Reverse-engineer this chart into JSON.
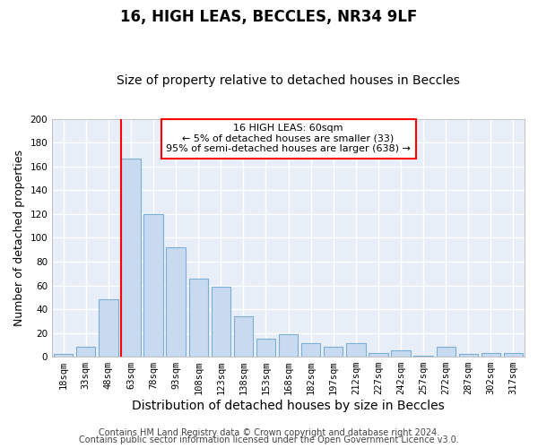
{
  "title1": "16, HIGH LEAS, BECCLES, NR34 9LF",
  "title2": "Size of property relative to detached houses in Beccles",
  "xlabel": "Distribution of detached houses by size in Beccles",
  "ylabel": "Number of detached properties",
  "bar_color": "#c8daf0",
  "bar_edge_color": "#7aaed4",
  "background_color": "#ffffff",
  "plot_bg_color": "#e8eef8",
  "grid_color": "#ffffff",
  "categories": [
    "18sqm",
    "33sqm",
    "48sqm",
    "63sqm",
    "78sqm",
    "93sqm",
    "108sqm",
    "123sqm",
    "138sqm",
    "153sqm",
    "168sqm",
    "182sqm",
    "197sqm",
    "212sqm",
    "227sqm",
    "242sqm",
    "257sqm",
    "272sqm",
    "287sqm",
    "302sqm",
    "317sqm"
  ],
  "values": [
    2,
    8,
    48,
    167,
    120,
    92,
    66,
    59,
    34,
    15,
    19,
    11,
    8,
    11,
    3,
    5,
    1,
    8,
    2,
    3,
    3
  ],
  "ylim": [
    0,
    200
  ],
  "yticks": [
    0,
    20,
    40,
    60,
    80,
    100,
    120,
    140,
    160,
    180,
    200
  ],
  "red_line_index": 3,
  "annotation_box_text": "16 HIGH LEAS: 60sqm\n← 5% of detached houses are smaller (33)\n95% of semi-detached houses are larger (638) →",
  "footer_line1": "Contains HM Land Registry data © Crown copyright and database right 2024.",
  "footer_line2": "Contains public sector information licensed under the Open Government Licence v3.0.",
  "title1_fontsize": 12,
  "title2_fontsize": 10,
  "xlabel_fontsize": 10,
  "ylabel_fontsize": 9,
  "tick_fontsize": 7.5,
  "footer_fontsize": 7
}
